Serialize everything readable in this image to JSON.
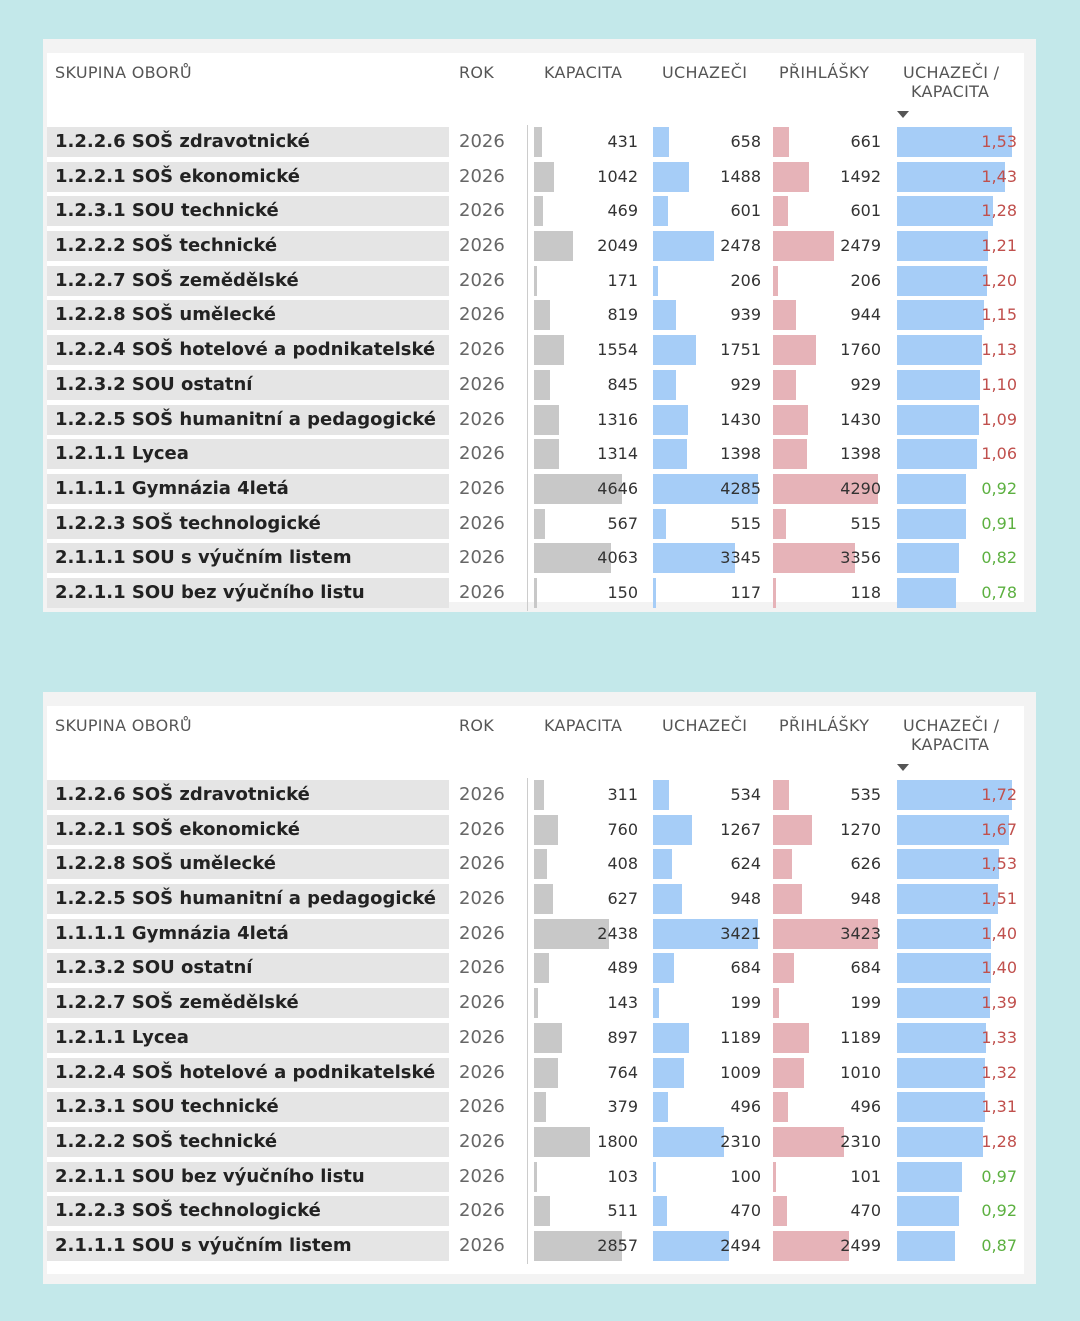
{
  "headers": {
    "group": "SKUPINA OBORŮ",
    "year": "ROK",
    "capacity": "KAPACITA",
    "applicants": "UCHAZEČI",
    "applications": "PŘIHLÁŠKY",
    "ratio_line1": "UCHAZEČI /",
    "ratio_line2": "KAPACITA",
    "sort": "descending"
  },
  "colors": {
    "capacity_bar": "#c8c8c8",
    "applicants_bar": "#a6cdf7",
    "applications_bar": "#e6b3b8",
    "ratio_high": "#c0504d",
    "ratio_low": "#5cb040"
  },
  "tables": [
    {
      "rows": [
        [
          "1.2.2.6 SOŠ zdravotnické",
          "2026",
          "431",
          "658",
          "661",
          "1,53"
        ],
        [
          "1.2.2.1 SOŠ ekonomické",
          "2026",
          "1042",
          "1488",
          "1492",
          "1,43"
        ],
        [
          "1.2.3.1 SOU technické",
          "2026",
          "469",
          "601",
          "601",
          "1,28"
        ],
        [
          "1.2.2.2 SOŠ technické",
          "2026",
          "2049",
          "2478",
          "2479",
          "1,21"
        ],
        [
          "1.2.2.7 SOŠ zemědělské",
          "2026",
          "171",
          "206",
          "206",
          "1,20"
        ],
        [
          "1.2.2.8 SOŠ umělecké",
          "2026",
          "819",
          "939",
          "944",
          "1,15"
        ],
        [
          "1.2.2.4 SOŠ hotelové a podnikatelské",
          "2026",
          "1554",
          "1751",
          "1760",
          "1,13"
        ],
        [
          "1.2.3.2 SOU ostatní",
          "2026",
          "845",
          "929",
          "929",
          "1,10"
        ],
        [
          "1.2.2.5 SOŠ humanitní a pedagogické",
          "2026",
          "1316",
          "1430",
          "1430",
          "1,09"
        ],
        [
          "1.2.1.1 Lycea",
          "2026",
          "1314",
          "1398",
          "1398",
          "1,06"
        ],
        [
          "1.1.1.1 Gymnázia 4letá",
          "2026",
          "4646",
          "4285",
          "4290",
          "0,92"
        ],
        [
          "1.2.2.3 SOŠ technologické",
          "2026",
          "567",
          "515",
          "515",
          "0,91"
        ],
        [
          "2.1.1.1 SOU s výučním listem",
          "2026",
          "4063",
          "3345",
          "3356",
          "0,82"
        ],
        [
          "2.2.1.1 SOU bez výučního listu",
          "2026",
          "150",
          "117",
          "118",
          "0,78"
        ]
      ]
    },
    {
      "rows": [
        [
          "1.2.2.6 SOŠ zdravotnické",
          "2026",
          "311",
          "534",
          "535",
          "1,72"
        ],
        [
          "1.2.2.1 SOŠ ekonomické",
          "2026",
          "760",
          "1267",
          "1270",
          "1,67"
        ],
        [
          "1.2.2.8 SOŠ umělecké",
          "2026",
          "408",
          "624",
          "626",
          "1,53"
        ],
        [
          "1.2.2.5 SOŠ humanitní a pedagogické",
          "2026",
          "627",
          "948",
          "948",
          "1,51"
        ],
        [
          "1.1.1.1 Gymnázia 4letá",
          "2026",
          "2438",
          "3421",
          "3423",
          "1,40"
        ],
        [
          "1.2.3.2 SOU ostatní",
          "2026",
          "489",
          "684",
          "684",
          "1,40"
        ],
        [
          "1.2.2.7 SOŠ zemědělské",
          "2026",
          "143",
          "199",
          "199",
          "1,39"
        ],
        [
          "1.2.1.1 Lycea",
          "2026",
          "897",
          "1189",
          "1189",
          "1,33"
        ],
        [
          "1.2.2.4 SOŠ hotelové a podnikatelské",
          "2026",
          "764",
          "1009",
          "1010",
          "1,32"
        ],
        [
          "1.2.3.1 SOU technické",
          "2026",
          "379",
          "496",
          "496",
          "1,31"
        ],
        [
          "1.2.2.2 SOŠ technické",
          "2026",
          "1800",
          "2310",
          "2310",
          "1,28"
        ],
        [
          "2.2.1.1 SOU bez výučního listu",
          "2026",
          "103",
          "100",
          "101",
          "0,97"
        ],
        [
          "1.2.2.3 SOŠ technologické",
          "2026",
          "511",
          "470",
          "470",
          "0,92"
        ],
        [
          "2.1.1.1 SOU s výučním listem",
          "2026",
          "2857",
          "2494",
          "2499",
          "0,87"
        ]
      ]
    }
  ]
}
